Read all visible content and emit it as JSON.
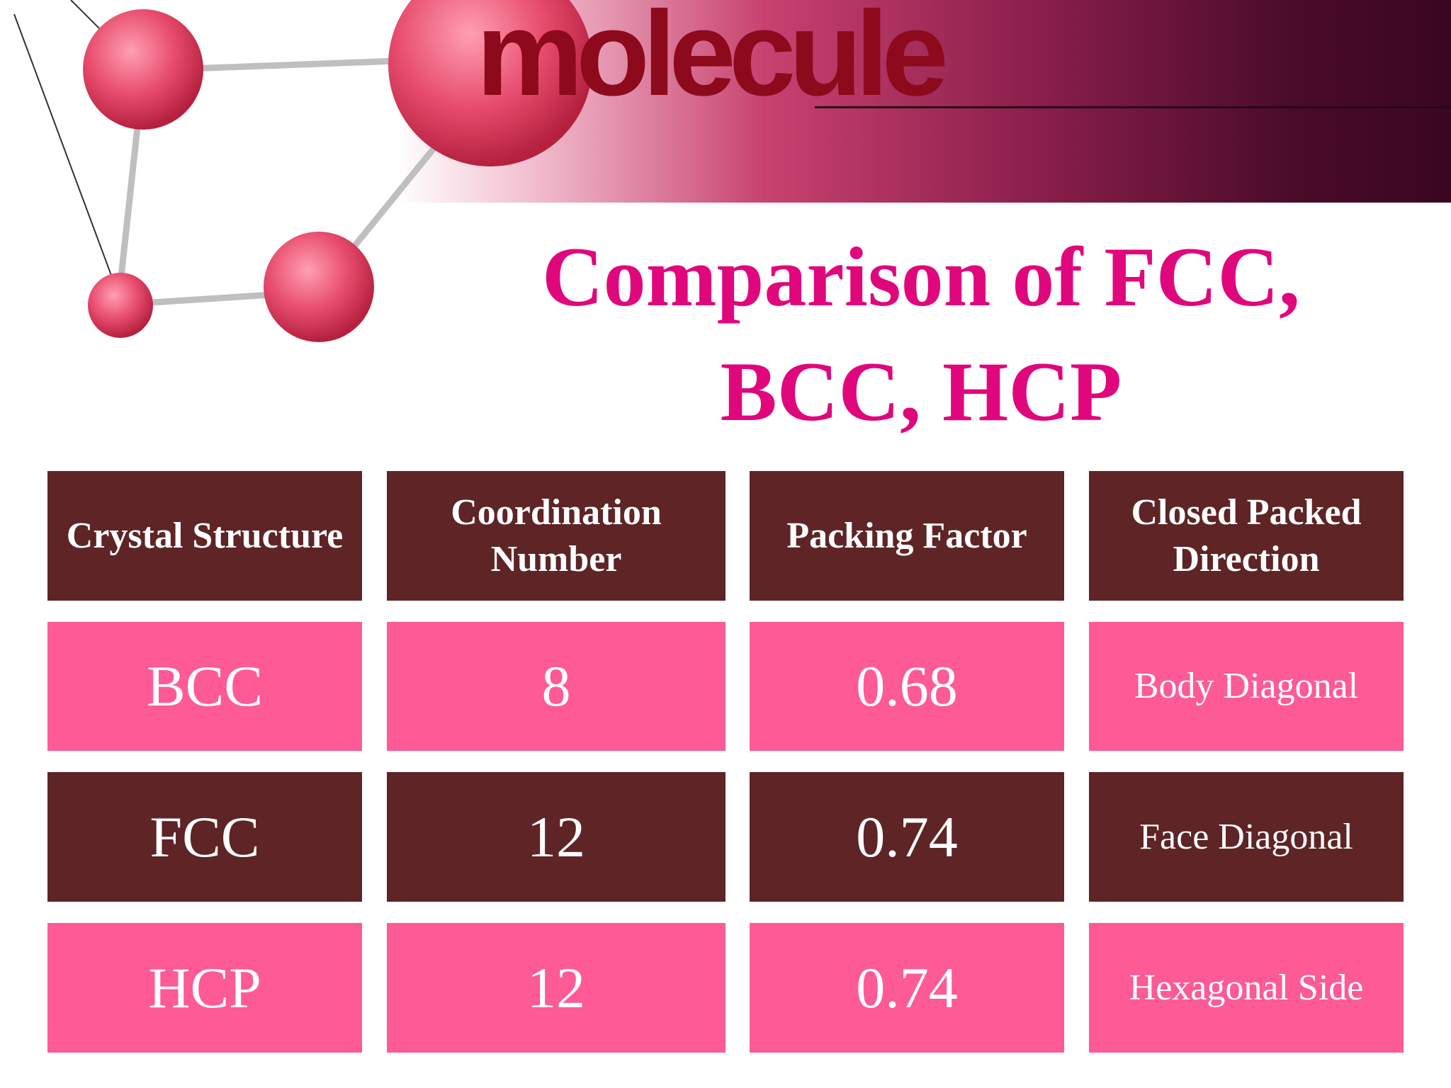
{
  "header": {
    "brand": "molecule",
    "title": "Comparison of FCC, BCC, HCP"
  },
  "table": {
    "columns": [
      "Crystal Structure",
      "Coordination Number",
      "Packing Factor",
      "Closed Packed Direction"
    ],
    "rows": [
      [
        "BCC",
        "8",
        "0.68",
        "Body Diagonal"
      ],
      [
        "FCC",
        "12",
        "0.74",
        "Face Diagonal"
      ],
      [
        "HCP",
        "12",
        "0.74",
        "Hexagonal Side"
      ]
    ]
  }
}
